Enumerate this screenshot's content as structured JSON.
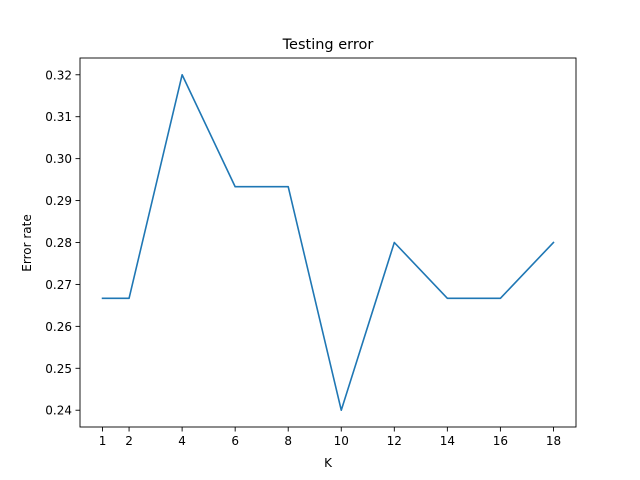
{
  "chart_data": {
    "type": "line",
    "title": "Testing error",
    "xlabel": "K",
    "ylabel": "Error rate",
    "x": [
      1,
      2,
      4,
      6,
      8,
      10,
      12,
      14,
      16,
      18
    ],
    "series": [
      {
        "values": [
          0.2667,
          0.2667,
          0.32,
          0.2933,
          0.2933,
          0.24,
          0.28,
          0.2667,
          0.2667,
          0.28
        ],
        "color": "#1f77b4"
      }
    ],
    "xlim": [
      0.15,
      18.85
    ],
    "ylim": [
      0.236,
      0.324
    ],
    "xticks": [
      1,
      2,
      4,
      6,
      8,
      10,
      12,
      14,
      16,
      18
    ],
    "xtick_labels": [
      "1",
      "2",
      "4",
      "6",
      "8",
      "10",
      "12",
      "14",
      "16",
      "18"
    ],
    "yticks": [
      0.24,
      0.25,
      0.26,
      0.27,
      0.28,
      0.29,
      0.3,
      0.31,
      0.32
    ],
    "ytick_labels": [
      "0.24",
      "0.25",
      "0.26",
      "0.27",
      "0.28",
      "0.29",
      "0.30",
      "0.31",
      "0.32"
    ],
    "grid": false,
    "legend": false
  }
}
